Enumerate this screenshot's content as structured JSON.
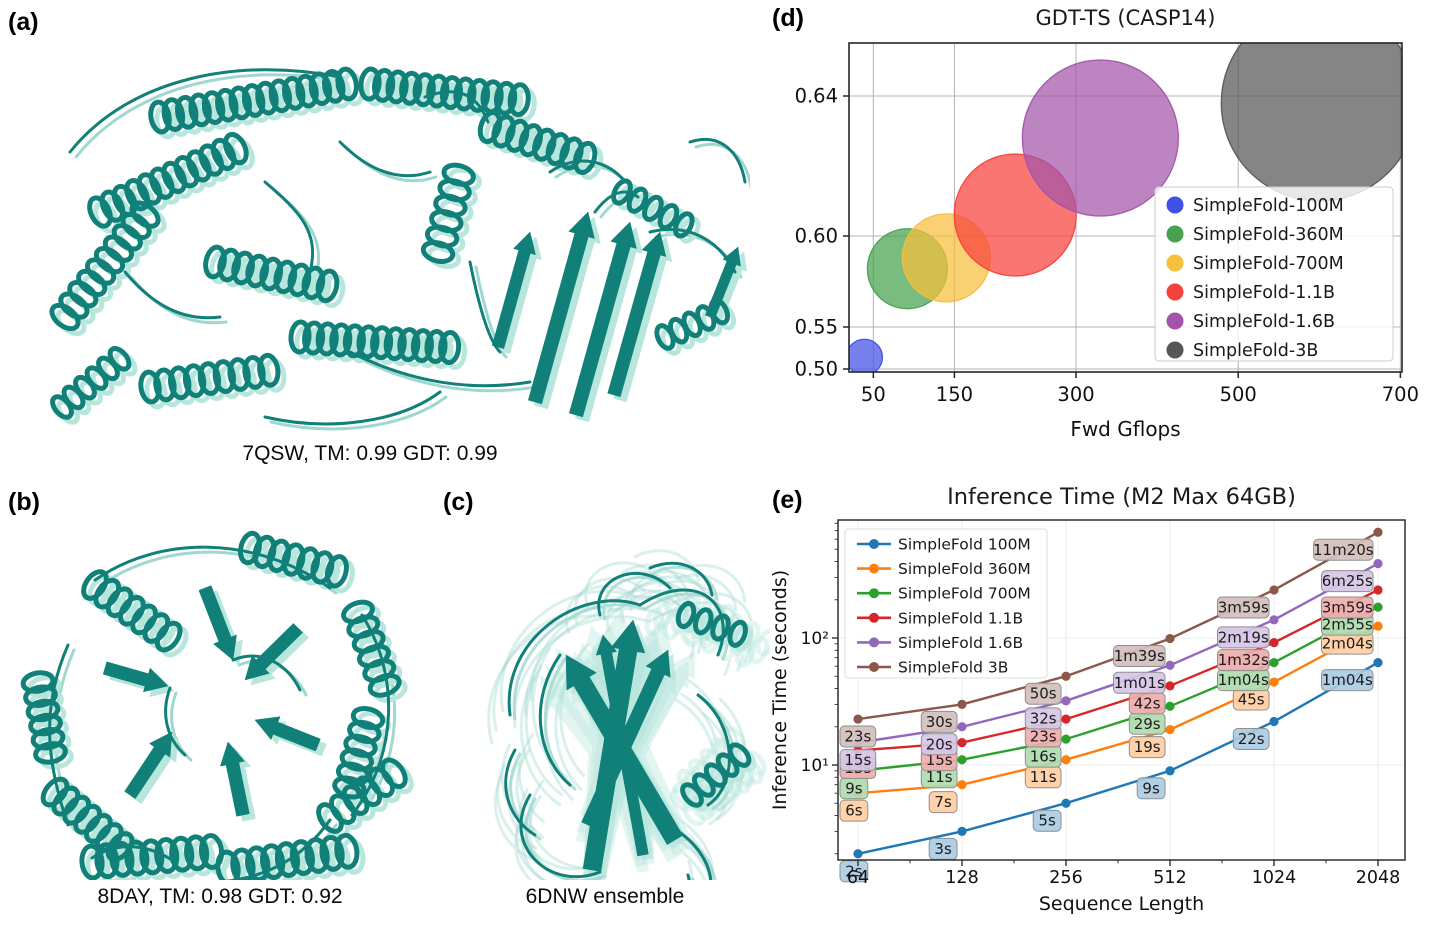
{
  "figure": {
    "panels": {
      "a": {
        "label": "(a)",
        "caption": "7QSW, TM: 0.99 GDT: 0.99",
        "content": "superposed predicted and experimental protein ribbon structures"
      },
      "b": {
        "label": "(b)",
        "caption": "8DAY, TM: 0.98 GDT: 0.92",
        "content": "superposed predicted and experimental protein ribbon structures, barrel fold"
      },
      "c": {
        "label": "(c)",
        "caption": "6DNW ensemble",
        "content": "protein conformational ensemble, beta sandwich with flexible loops"
      },
      "d": {
        "label": "(d)"
      },
      "e": {
        "label": "(e)"
      }
    },
    "protein_colors": {
      "dark_teal": "#108079",
      "light_teal": "#b7e6dd",
      "loop_teal": "#9fd8cf"
    }
  },
  "chart_data": [
    {
      "id": "gdt_ts_casp14",
      "type": "scatter",
      "title": "GDT-TS (CASP14)",
      "xlabel": "Fwd Gflops",
      "x_ticks": [
        50,
        150,
        300,
        500,
        700
      ],
      "y_ticks": [
        0.5,
        0.55,
        0.6,
        0.64
      ],
      "xlim": [
        20,
        702
      ],
      "grid": true,
      "legend_position": "lower right",
      "series": [
        {
          "name": "SimpleFold-100M",
          "color": "#4150e8",
          "gflops": 39,
          "gdt_ts": 0.514,
          "bubble_r": 18
        },
        {
          "name": "SimpleFold-360M",
          "color": "#47a14e",
          "gflops": 92,
          "gdt_ts": 0.582,
          "bubble_r": 40
        },
        {
          "name": "SimpleFold-700M",
          "color": "#f6bf3c",
          "gflops": 140,
          "gdt_ts": 0.588,
          "bubble_r": 44
        },
        {
          "name": "SimpleFold-1.1B",
          "color": "#f6413c",
          "gflops": 225,
          "gdt_ts": 0.606,
          "bubble_r": 61
        },
        {
          "name": "SimpleFold-1.6B",
          "color": "#a254a8",
          "gflops": 330,
          "gdt_ts": 0.628,
          "bubble_r": 78
        },
        {
          "name": "SimpleFold-3B",
          "color": "#565656",
          "gflops": 600,
          "gdt_ts": 0.638,
          "bubble_r": 98
        }
      ]
    },
    {
      "id": "inference_time",
      "type": "line",
      "title": "Inference Time (M2 Max 64GB)",
      "xlabel": "Sequence Length",
      "ylabel": "Inference Time (seconds)",
      "x": [
        64,
        128,
        256,
        512,
        1024,
        2048
      ],
      "xscale": "log2",
      "yscale": "log10",
      "y_tick_labels": [
        "10¹",
        "10²"
      ],
      "y_tick_values": [
        10,
        100
      ],
      "grid": true,
      "legend_position": "upper left",
      "series": [
        {
          "name": "SimpleFold 100M",
          "color": "#1f77b4",
          "seconds": [
            2,
            3,
            5,
            9,
            22,
            64
          ],
          "labels": [
            "2s",
            "3s",
            "5s",
            "9s",
            "22s",
            "1m04s"
          ]
        },
        {
          "name": "SimpleFold 360M",
          "color": "#ff7f0e",
          "seconds": [
            6,
            7,
            11,
            19,
            45,
            124
          ],
          "labels": [
            "6s",
            "7s",
            "11s",
            "19s",
            "45s",
            "2m04s"
          ]
        },
        {
          "name": "SimpleFold 700M",
          "color": "#2ca02c",
          "seconds": [
            9,
            11,
            16,
            29,
            64,
            175
          ],
          "labels": [
            "9s",
            "11s",
            "16s",
            "29s",
            "1m04s",
            "2m55s"
          ]
        },
        {
          "name": "SimpleFold 1.1B",
          "color": "#d62728",
          "seconds": [
            13,
            15,
            23,
            42,
            92,
            239
          ],
          "labels": [
            "13s",
            "15s",
            "23s",
            "42s",
            "1m32s",
            "3m59s"
          ]
        },
        {
          "name": "SimpleFold 1.6B",
          "color": "#9467bd",
          "seconds": [
            15,
            20,
            32,
            61,
            139,
            385
          ],
          "labels": [
            "15s",
            "20s",
            "32s",
            "1m01s",
            "2m19s",
            "6m25s"
          ]
        },
        {
          "name": "SimpleFold 3B",
          "color": "#8c564b",
          "seconds": [
            23,
            30,
            50,
            99,
            239,
            680
          ],
          "labels": [
            "23s",
            "30s",
            "50s",
            "1m39s",
            "3m59s",
            "11m20s"
          ]
        }
      ]
    }
  ]
}
